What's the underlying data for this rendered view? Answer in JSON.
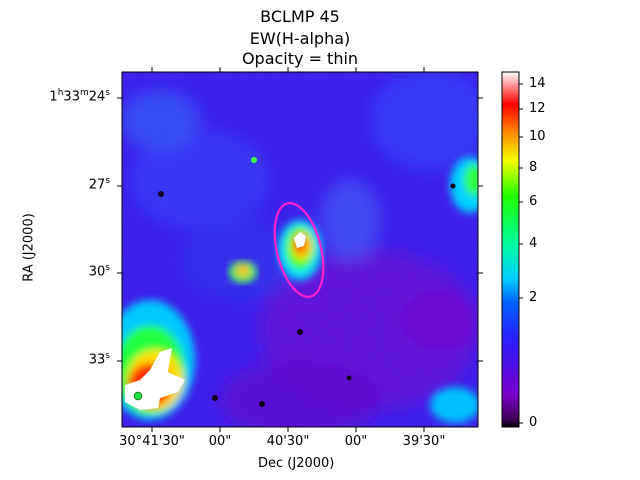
{
  "chart_data": {
    "type": "heatmap",
    "title_lines": [
      "BCLMP 45",
      "EW(H-alpha)",
      "Opacity = thin"
    ],
    "xlabel": "Dec (J2000)",
    "ylabel": "RA (J2000)",
    "x_ticks": [
      "30°41'30\"",
      "00\"",
      "40'30\"",
      "00\"",
      "39'30\""
    ],
    "y_ticks": [
      {
        "main": "1",
        "sup1": "h",
        "m": "33",
        "sup2": "m",
        "s": "24",
        "sup3": "s"
      },
      {
        "main": "27",
        "sup3": "s"
      },
      {
        "main": "30",
        "sup3": "s"
      },
      {
        "main": "33",
        "sup3": "s"
      }
    ],
    "colorbar": {
      "ticks": [
        "0",
        "2",
        "4",
        "6",
        "8",
        "10",
        "12",
        "14"
      ],
      "range": [
        0,
        15
      ],
      "scale": "nonlinear (compressed near zero)"
    },
    "overlay": {
      "shape": "ellipse",
      "color": "#ff22cc"
    }
  }
}
